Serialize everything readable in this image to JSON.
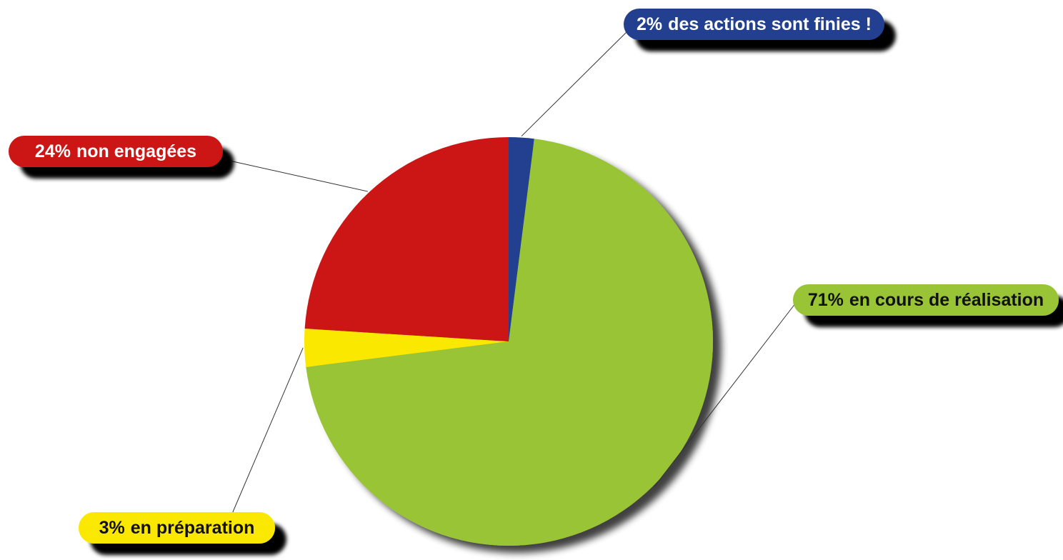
{
  "chart_data": {
    "type": "pie",
    "categories": [
      "des actions sont finies !",
      "en cours de réalisation",
      "en préparation",
      "non engagées"
    ],
    "values": [
      2,
      71,
      3,
      24
    ],
    "value_labels": [
      "2%",
      "71%",
      "3%",
      "24%"
    ],
    "colors": [
      "#233f8f",
      "#98c434",
      "#fbe800",
      "#cc1719"
    ]
  }
}
